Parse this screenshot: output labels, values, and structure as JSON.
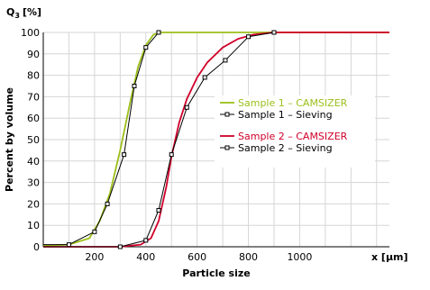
{
  "chart_data": {
    "type": "line",
    "y_label_title": "Q",
    "y_label_sub": "3",
    "y_label_unit": "[%]",
    "ylabel": "Percent by volume",
    "xlabel": "Particle size",
    "x_unit_label": "x [µm]",
    "xlim": [
      0,
      1350
    ],
    "ylim": [
      0,
      100
    ],
    "x_ticks": [
      200,
      400,
      600,
      800,
      1000
    ],
    "y_ticks": [
      0,
      10,
      20,
      30,
      40,
      50,
      60,
      70,
      80,
      90,
      100
    ],
    "grid": true,
    "legend_placement": "center-right",
    "series": [
      {
        "name": "Sample 1 – CAMSIZER",
        "color": "#9bbf1a",
        "marker": "none",
        "x": [
          0,
          100,
          180,
          220,
          260,
          300,
          340,
          370,
          400,
          430,
          460,
          500,
          600,
          800,
          1000,
          1350
        ],
        "y": [
          0.5,
          1,
          4,
          12,
          25,
          45,
          68,
          84,
          94,
          99,
          100,
          100,
          100,
          100,
          100,
          100
        ]
      },
      {
        "name": "Sample 1 – Sieving",
        "color": "#000000",
        "marker": "square",
        "x": [
          0,
          100,
          200,
          250,
          315,
          355,
          400,
          450
        ],
        "y": [
          1,
          1,
          7,
          20,
          43,
          75,
          93,
          100
        ]
      },
      {
        "name": "Sample 2 – CAMSIZER",
        "color": "#d0002a",
        "marker": "none",
        "x": [
          0,
          300,
          380,
          420,
          450,
          480,
          500,
          530,
          560,
          600,
          640,
          700,
          760,
          820,
          900,
          1000,
          1350
        ],
        "y": [
          0,
          0,
          1,
          4,
          12,
          28,
          42,
          58,
          69,
          79,
          86,
          93,
          97,
          99,
          100,
          100,
          100
        ]
      },
      {
        "name": "Sample 2 – Sieving",
        "color": "#000000",
        "marker": "square",
        "x": [
          0,
          300,
          400,
          450,
          500,
          560,
          630,
          710,
          800,
          900
        ],
        "y": [
          0,
          0,
          3,
          17,
          43,
          65,
          79,
          87,
          98,
          100
        ]
      }
    ]
  }
}
